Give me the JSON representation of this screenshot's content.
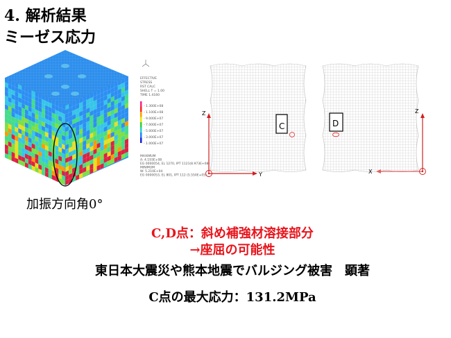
{
  "title": {
    "line1": "4. 解析結果",
    "line2": "ミーゼス応力"
  },
  "figure": {
    "caption": "加振方向角0°",
    "legend": {
      "header": [
        "EFFECTIVE",
        "STRESS",
        "RST CALC",
        "SHELL T = 1.00",
        "TIME 1.4160"
      ],
      "ticks": [
        "1.300E+08",
        "1.100E+08",
        "9.000E+07",
        "7.000E+07",
        "5.000E+07",
        "3.000E+07",
        "1.000E+07"
      ],
      "footer": [
        "MAXIMUM",
        "A: 4.193E+08",
        "EG 0000054, EL 1270, IPT 1121(8.973E+08)",
        "MINIMUM",
        "W: 5.210E+04",
        "EG 0000053, EL 801, IPT 112 (5.550E+05)"
      ],
      "colors": [
        "#ff2080",
        "#ff2020",
        "#ff9a00",
        "#e8e800",
        "#30d030",
        "#20d0d0",
        "#2080ff",
        "#1020e0"
      ]
    },
    "panels": [
      {
        "label": "C",
        "axis_vertical": "Z",
        "axis_horizontal": "Y"
      },
      {
        "label": "D",
        "axis_vertical": "Z",
        "axis_horizontal": "X"
      }
    ],
    "marker_color": "#e02020"
  },
  "notes": {
    "red_line1": "C,D点：斜め補強材溶接部分",
    "red_line2": "→座屈の可能性",
    "line3": "東日本大震災や熊本地震でバルジング被害　顕著",
    "line4": "C点の最大応力：131.2MPa"
  }
}
